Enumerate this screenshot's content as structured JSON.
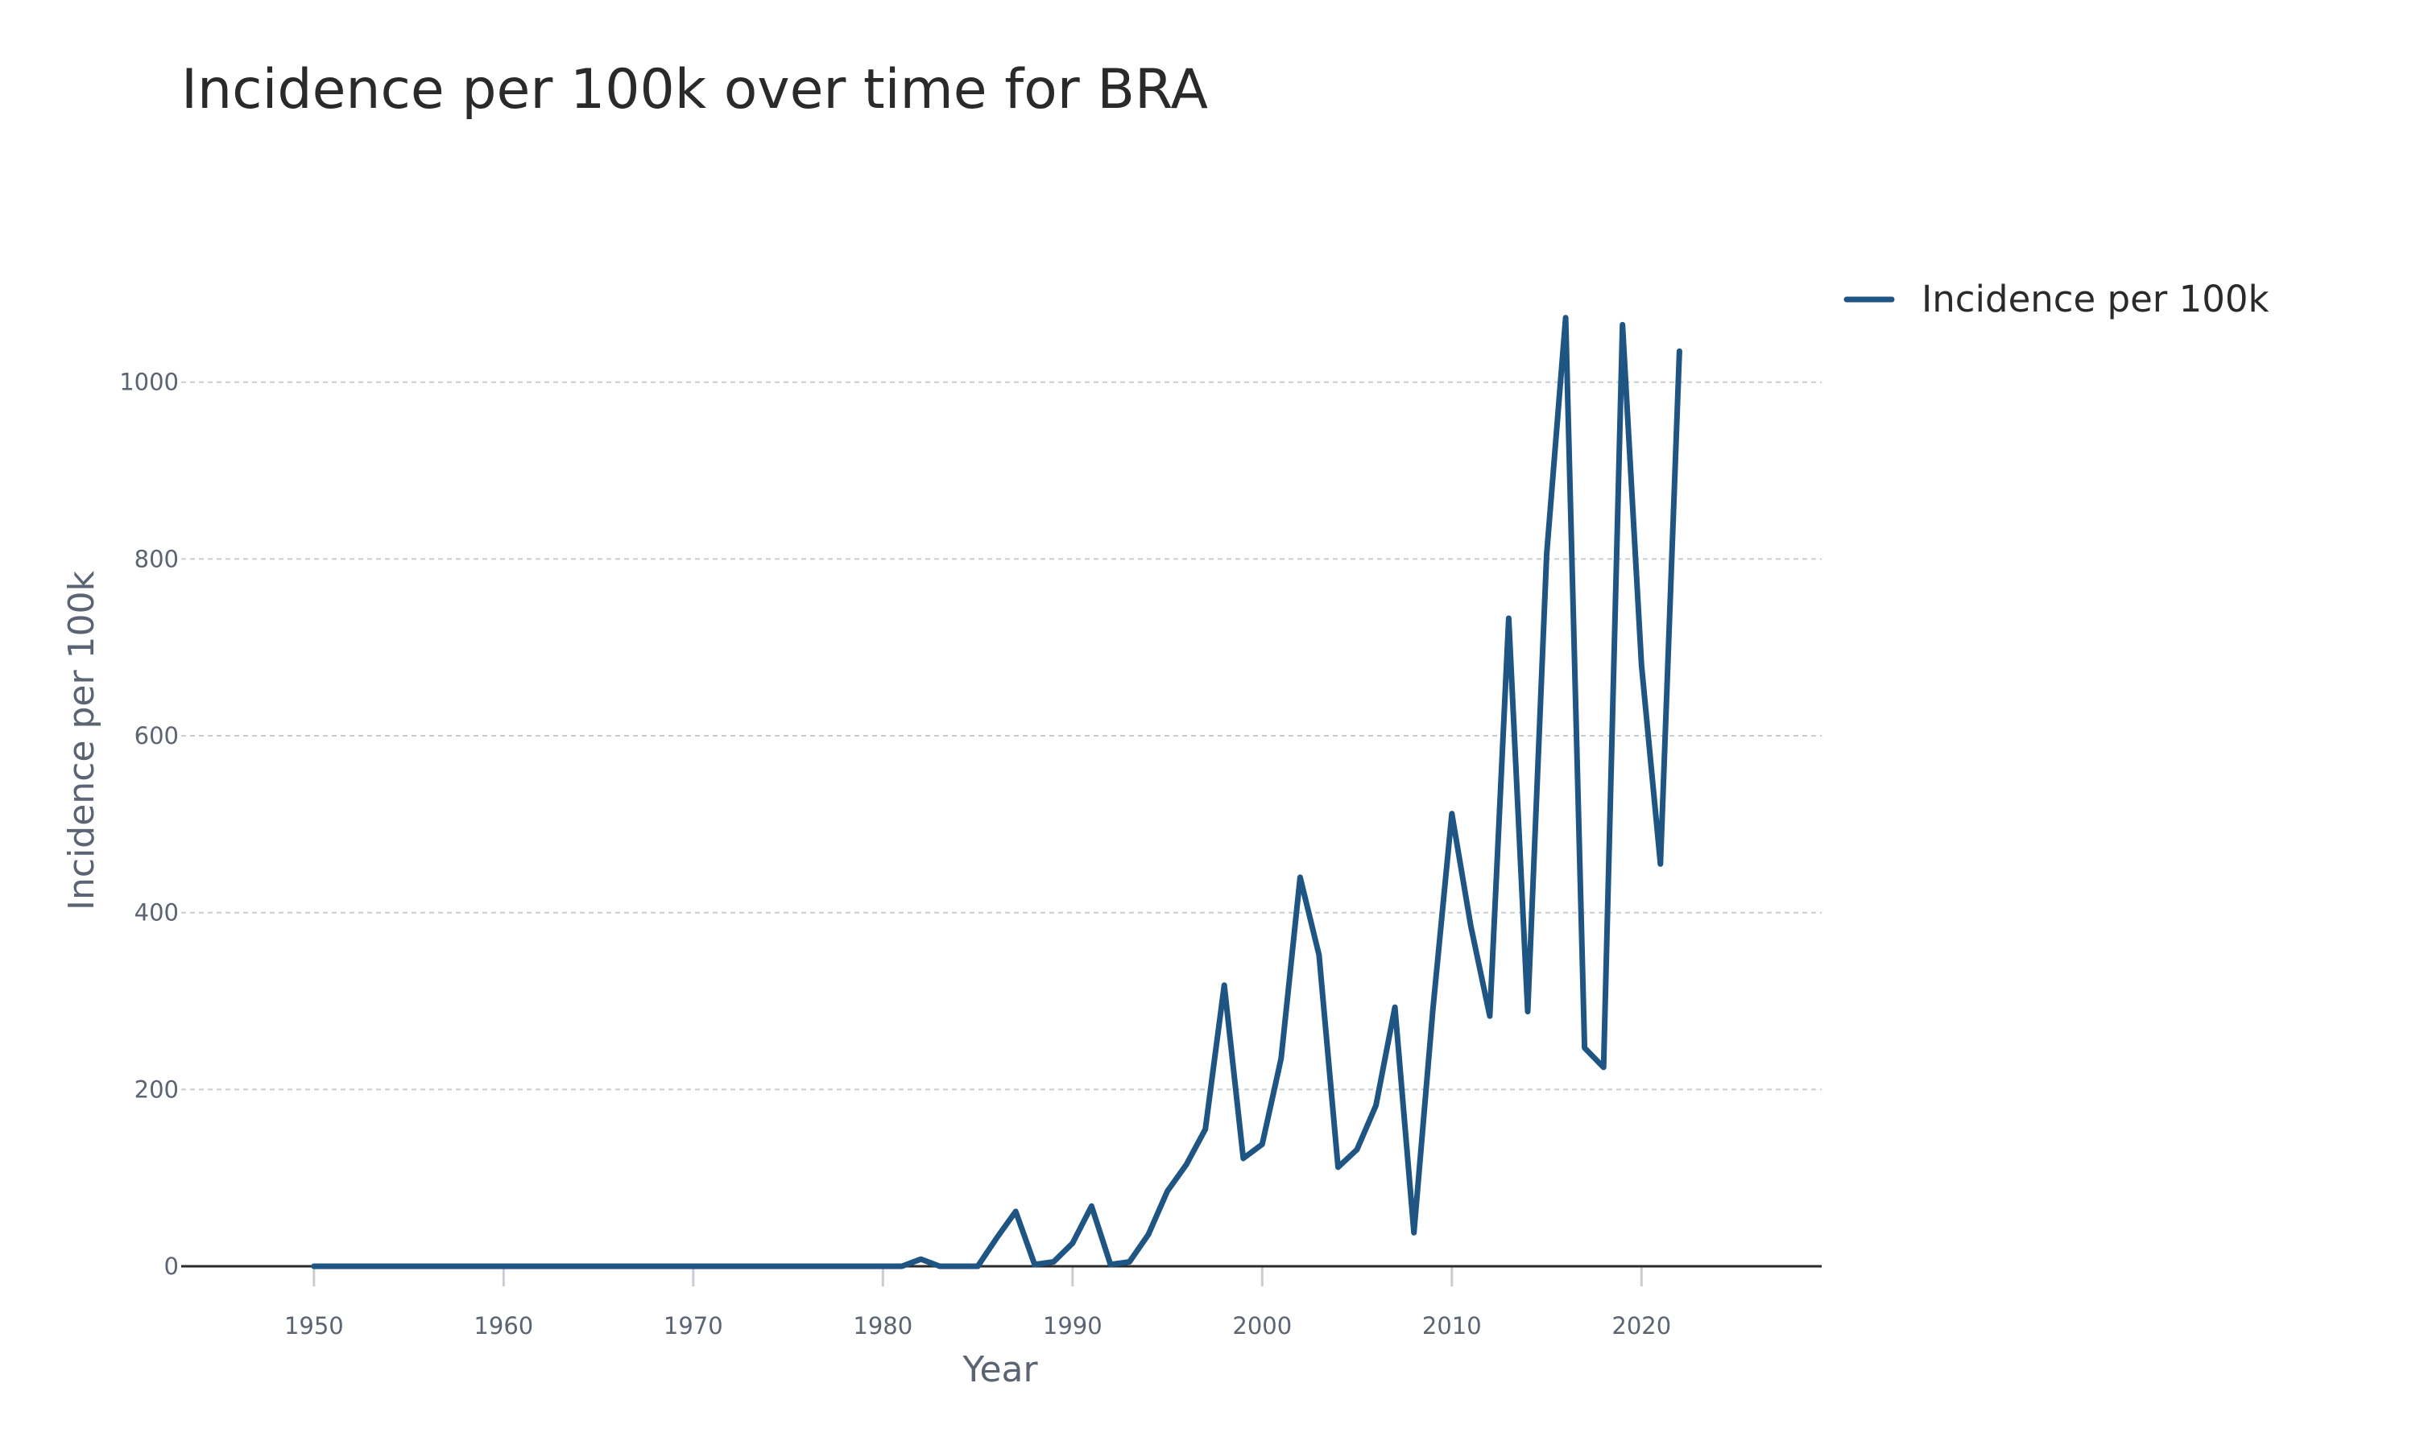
{
  "chart_data": {
    "type": "line",
    "title": "Incidence per 100k over time for BRA",
    "xlabel": "Year",
    "ylabel": "Incidence per 100k",
    "xlim": [
      1943,
      2029.5
    ],
    "ylim": [
      0,
      1150
    ],
    "x_ticks": [
      1950,
      1960,
      1970,
      1980,
      1990,
      2000,
      2010,
      2020
    ],
    "y_ticks": [
      0,
      200,
      400,
      600,
      800,
      1000
    ],
    "grid": true,
    "legend_position": "top-right",
    "color": "#1f5582",
    "series": [
      {
        "name": "Incidence per 100k",
        "x": [
          1950,
          1951,
          1952,
          1953,
          1954,
          1955,
          1956,
          1957,
          1958,
          1959,
          1960,
          1961,
          1962,
          1963,
          1964,
          1965,
          1966,
          1967,
          1968,
          1969,
          1970,
          1971,
          1972,
          1973,
          1974,
          1975,
          1976,
          1977,
          1978,
          1979,
          1980,
          1981,
          1982,
          1983,
          1984,
          1985,
          1986,
          1987,
          1988,
          1989,
          1990,
          1991,
          1992,
          1993,
          1994,
          1995,
          1996,
          1997,
          1998,
          1999,
          2000,
          2001,
          2002,
          2003,
          2004,
          2005,
          2006,
          2007,
          2008,
          2009,
          2010,
          2011,
          2012,
          2013,
          2014,
          2015,
          2016,
          2017,
          2018,
          2019,
          2020,
          2021,
          2022
        ],
        "values": [
          0,
          0,
          0,
          0,
          0,
          0,
          0,
          0,
          0,
          0,
          0,
          0,
          0,
          0,
          0,
          0,
          0,
          0,
          0,
          0,
          0,
          0,
          0,
          0,
          0,
          0,
          0,
          0,
          0,
          0,
          0,
          0,
          8,
          0,
          0,
          0,
          32,
          62,
          2,
          5,
          26,
          68,
          2,
          5,
          36,
          85,
          115,
          155,
          318,
          122,
          138,
          235,
          440,
          352,
          112,
          132,
          182,
          293,
          38,
          290,
          512,
          385,
          283,
          733,
          288,
          805,
          1073,
          247,
          225,
          1065,
          680,
          455,
          1035
        ]
      }
    ]
  }
}
